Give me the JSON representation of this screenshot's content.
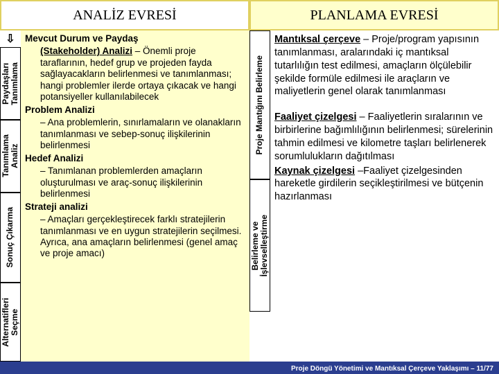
{
  "colors": {
    "bg_main": "#2b3e8f",
    "white": "#ffffff",
    "yellow_light": "#ffffcc",
    "yellow_border": "#e0d060",
    "text": "#000000"
  },
  "topbar": {
    "left_title": "ANALİZ EVRESİ",
    "right_title": "PLANLAMA EVRESİ"
  },
  "left_side_labels": {
    "arrow": "⇩",
    "l1": "Paydaşları\nTanımlama",
    "l2": "Tanımlama\nAnaliz",
    "l3": "Sonuç Çıkarma",
    "l4": "Alternatifleri\nSeçme"
  },
  "right_side_labels": {
    "r1": "Proje Mantığını Belirleme",
    "r2": "Belirleme ve\nİşlevselleştirme"
  },
  "left_text": {
    "p1a": "Mevcut Durum ve Paydaş",
    "p1b": "(Stakeholder) Analizi – Önemli proje taraflarının, hedef grup ve projeden fayda sağlayacakların belirlenmesi ve tanımlanması; hangi problemler ilerde ortaya çıkacak ve hangi potansiyeller kullanılabilecek",
    "p2a": "Problem Analizi",
    "p2b": " – Ana problemlerin, sınırlamaların ve olanakların tanımlanması ve sebep-sonuç ilişkilerinin belirlenmesi",
    "p3a": "Hedef Analizi",
    "p3b": " – Tanımlanan problemlerden amaçların oluşturulması ve araç-sonuç ilişkilerinin belirlenmesi",
    "p4a": "Strateji analizi",
    "p4b": " – Amaçları gerçekleştirecek farklı stratejilerin tanımlanması ve en uygun stratejilerin seçilmesi. Ayrıca, ana amaçların belirlenmesi (genel amaç ve proje amacı)"
  },
  "right_text": {
    "p1a": "Mantıksal çerçeve",
    "p1b": " – Proje/program yapısının tanımlanması, aralarındaki iç mantıksal tutarlılığın test edilmesi, amaçların ölçülebilir şekilde formüle edilmesi ile araçların ve maliyetlerin genel olarak tanımlanması",
    "p2a": "Faaliyet çizelgesi",
    "p2b": " – Faaliyetlerin sıralarının ve birbirlerine bağımlılığının belirlenmesi; sürelerinin tahmin edilmesi ve kilometre taşları belirlenerek sorumlulukların dağıtılması",
    "p3a": "Kaynak çizelgesi",
    "p3b": " –Faaliyet çizelgesinden hareketle girdilerin seçikleştirilmesi ve bütçenin hazırlanması"
  },
  "footer": "Proje Döngü Yönetimi ve Mantıksal Çerçeve Yaklaşımı  – 11/77"
}
